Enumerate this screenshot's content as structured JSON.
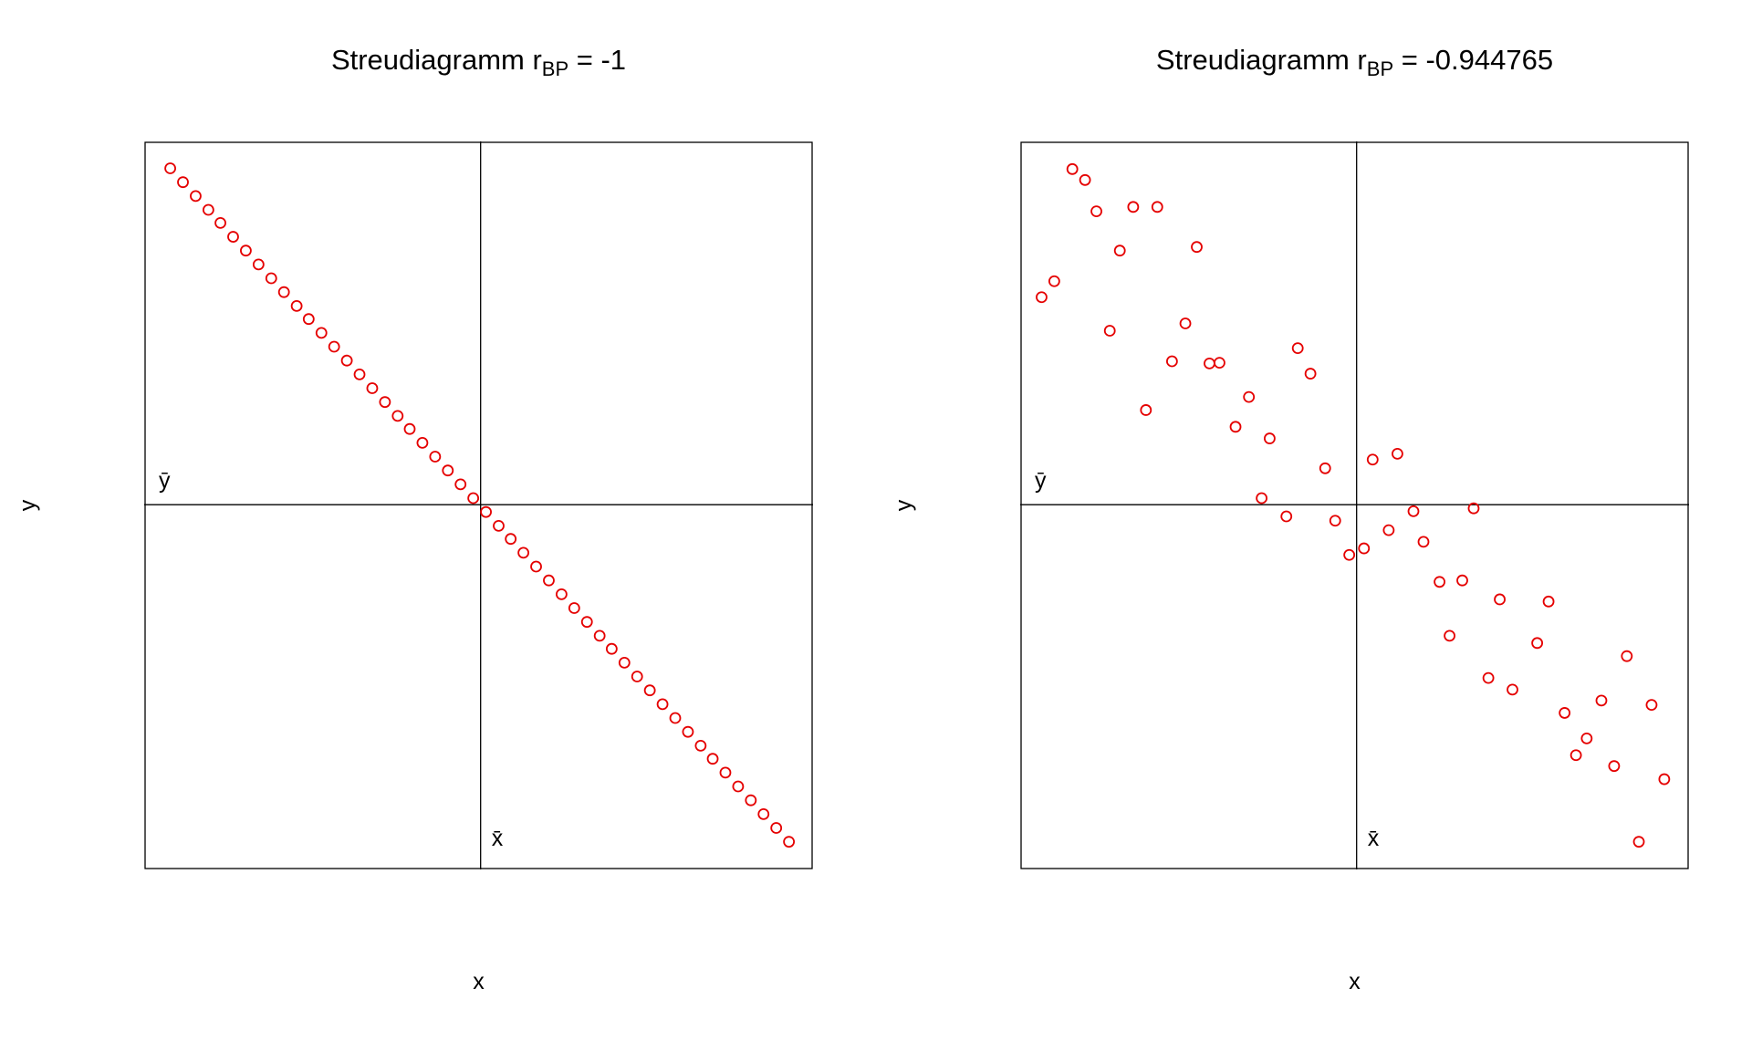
{
  "figure": {
    "background": "#ffffff",
    "foreground": "#000000"
  },
  "chart_data": [
    {
      "type": "scatter",
      "title": {
        "prefix": "Streudiagramm r",
        "sub": "BP",
        "suffix": " = -1"
      },
      "title_text": "Streudiagramm rBP = -1",
      "r_bp": -1,
      "xlabel": "x",
      "ylabel": "y",
      "xlim": [
        0,
        100
      ],
      "ylim": [
        0,
        100
      ],
      "grid": false,
      "mean_x": 50.3,
      "mean_y": 50.1,
      "mean_x_label": "x̄",
      "mean_y_label": "ȳ",
      "point_color": "#e50000",
      "point_shape": "open-circle",
      "points": {
        "x": [
          3.9,
          5.8,
          7.7,
          9.6,
          11.4,
          13.3,
          15.2,
          17.1,
          19.0,
          20.9,
          22.8,
          24.6,
          26.5,
          28.4,
          30.3,
          32.2,
          34.1,
          36.0,
          37.9,
          39.7,
          41.6,
          43.5,
          45.4,
          47.3,
          49.2,
          51.1,
          53.0,
          54.8,
          56.7,
          58.6,
          60.5,
          62.4,
          64.3,
          66.2,
          68.1,
          69.9,
          71.8,
          73.7,
          75.6,
          77.5,
          79.4,
          81.3,
          83.2,
          85.0,
          86.9,
          88.8,
          90.7,
          92.6,
          94.5,
          96.4
        ],
        "y": [
          96.3,
          94.4,
          92.5,
          90.6,
          88.8,
          86.9,
          85.0,
          83.1,
          81.2,
          79.3,
          77.4,
          75.6,
          73.7,
          71.8,
          69.9,
          68.0,
          66.1,
          64.2,
          62.3,
          60.5,
          58.6,
          56.7,
          54.8,
          52.9,
          51.0,
          49.1,
          47.2,
          45.4,
          43.5,
          41.6,
          39.7,
          37.8,
          35.9,
          34.0,
          32.1,
          30.3,
          28.4,
          26.5,
          24.6,
          22.7,
          20.8,
          18.9,
          17.0,
          15.2,
          13.3,
          11.4,
          9.5,
          7.6,
          5.7,
          3.8
        ]
      }
    },
    {
      "type": "scatter",
      "title": {
        "prefix": "Streudiagramm r",
        "sub": "BP",
        "suffix": " = -0.944765"
      },
      "title_text": "Streudiagramm rBP = -0.944765",
      "r_bp": -0.944765,
      "xlabel": "x",
      "ylabel": "y",
      "xlim": [
        0,
        100
      ],
      "ylim": [
        0,
        100
      ],
      "grid": false,
      "mean_x": 50.3,
      "mean_y": 50.1,
      "mean_x_label": "x̄",
      "mean_y_label": "ȳ",
      "point_color": "#e50000",
      "point_shape": "open-circle",
      "points": {
        "x": [
          7.8,
          9.7,
          11.4,
          16.9,
          20.5,
          14.9,
          26.4,
          3.2,
          5.1,
          13.4,
          24.7,
          22.7,
          28.3,
          29.8,
          41.5,
          34.2,
          43.4,
          18.8,
          32.2,
          37.3,
          45.6,
          52.7,
          56.4,
          36.1,
          39.8,
          47.1,
          55.1,
          58.8,
          49.2,
          51.4,
          60.3,
          67.8,
          62.7,
          66.1,
          71.7,
          79.0,
          64.2,
          77.3,
          70.0,
          73.6,
          90.7,
          81.4,
          86.9,
          94.4,
          84.7,
          83.1,
          88.8,
          96.3,
          92.5
        ],
        "y": [
          96.2,
          94.7,
          90.4,
          91.0,
          91.0,
          85.0,
          85.5,
          78.6,
          80.8,
          74.0,
          75.0,
          69.8,
          69.5,
          69.6,
          71.6,
          64.9,
          68.1,
          63.1,
          60.8,
          59.2,
          55.1,
          56.3,
          57.1,
          51.0,
          48.5,
          47.9,
          46.6,
          49.2,
          43.2,
          44.1,
          45.0,
          49.6,
          39.5,
          39.7,
          37.1,
          36.8,
          32.1,
          31.1,
          26.3,
          24.7,
          29.3,
          21.5,
          23.2,
          22.6,
          18.0,
          15.7,
          14.2,
          12.4,
          3.8
        ]
      }
    }
  ]
}
